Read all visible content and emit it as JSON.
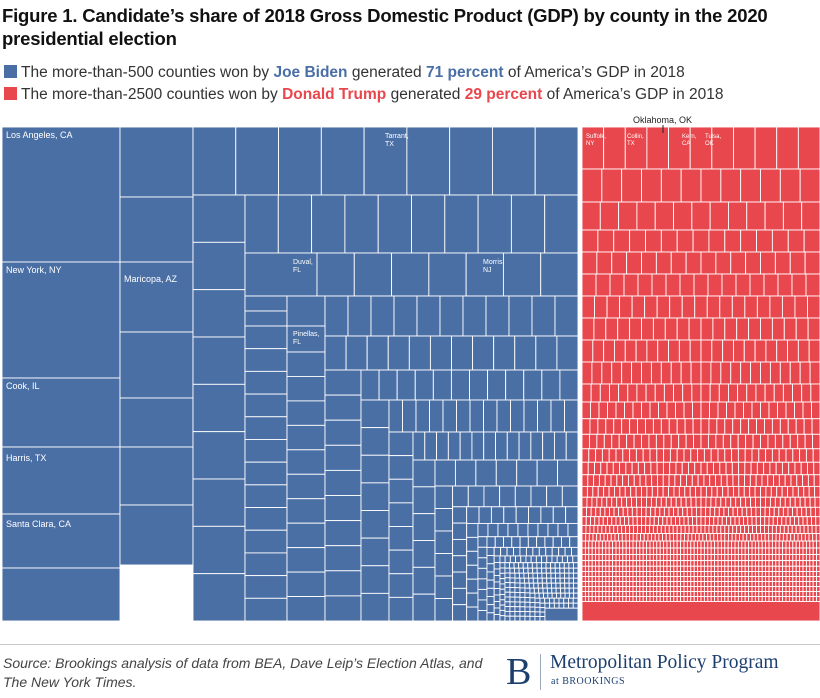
{
  "title": "Figure 1. Candidate’s share of 2018 Gross Domestic Product (GDP) by county in the 2020 presidential election",
  "legend": {
    "biden": {
      "pre": "The more-than-500 counties won by ",
      "name": "Joe Biden",
      "mid": " generated ",
      "value": "71 percent",
      "post": " of America’s GDP in 2018",
      "color": "#4a6fa5"
    },
    "trump": {
      "pre": "The more-than-2500 counties won by ",
      "name": "Donald Trump",
      "mid": " generated ",
      "value": "29 percent",
      "post": " of America’s GDP in 2018",
      "color": "#e8474d"
    }
  },
  "chart_data": {
    "type": "treemap",
    "series": [
      {
        "name": "Joe Biden",
        "share_percent": 71,
        "color": "#4a6fa5",
        "labeled_counties": [
          "Los Angeles, CA",
          "New York, NY",
          "Cook, IL",
          "Harris, TX",
          "Santa Clara, CA",
          "Maricopa, AZ",
          "Tarrant, TX",
          "Duval, FL",
          "Morris, NJ",
          "Pinellas, FL"
        ]
      },
      {
        "name": "Donald Trump",
        "share_percent": 29,
        "color": "#e8474d",
        "labeled_counties": [
          "Suffolk, NY",
          "Collin, TX",
          "Kern, CA",
          "Tulsa, OK",
          "Oklahoma, OK"
        ]
      }
    ]
  },
  "source": "Source: Brookings analysis of data from BEA, Dave Leip’s Election Atlas, and The New York Times.",
  "brand": {
    "mark": "B",
    "name": "Metropolitan Policy Program",
    "sub": "at BROOKINGS"
  }
}
